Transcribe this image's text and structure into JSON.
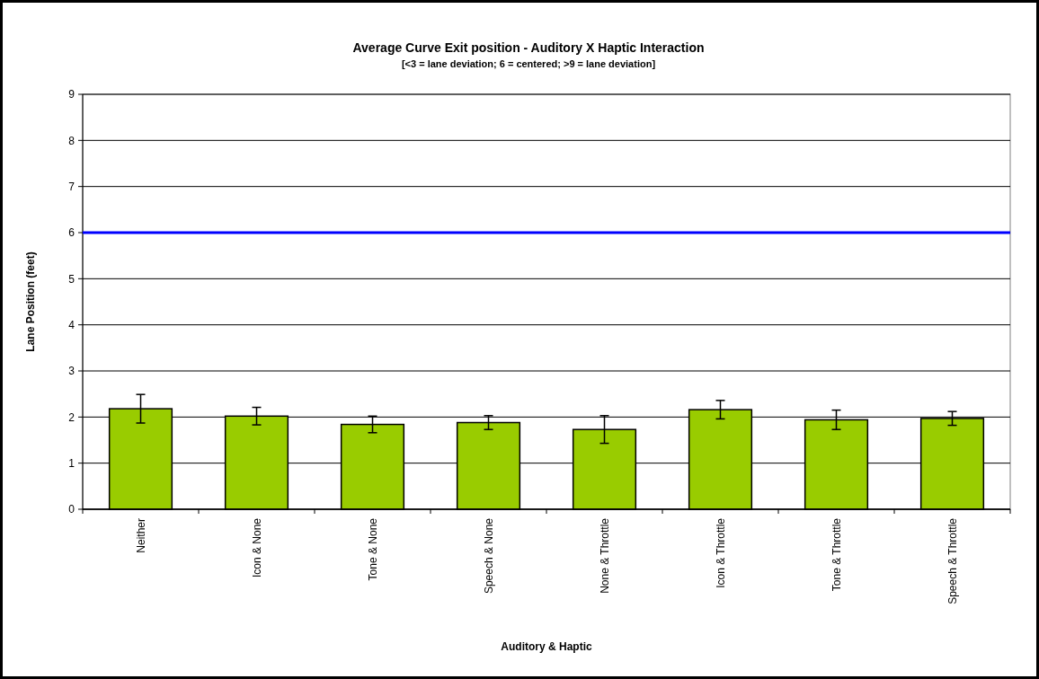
{
  "chart_data": {
    "type": "bar",
    "title": "Average Curve Exit position - Auditory X Haptic Interaction",
    "subtitle": "[<3 = lane deviation; 6 = centered; >9 = lane deviation]",
    "xlabel": "Auditory & Haptic",
    "ylabel": "Lane Position (feet)",
    "categories": [
      "Neither",
      "Icon & None",
      "Tone & None",
      "Speech & None",
      "None & Throttle",
      "Icon & Throttle",
      "Tone & Throttle",
      "Speech & Throttle"
    ],
    "values": [
      2.18,
      2.02,
      1.84,
      1.88,
      1.73,
      2.16,
      1.94,
      1.97
    ],
    "errors": [
      0.31,
      0.19,
      0.18,
      0.15,
      0.3,
      0.2,
      0.21,
      0.15
    ],
    "color": "#99cc00",
    "ylim": [
      0,
      9
    ],
    "yticks": [
      0,
      1,
      2,
      3,
      4,
      5,
      6,
      7,
      8,
      9
    ],
    "grid": "y",
    "ref_lines": [
      {
        "axis": "y",
        "value": 6,
        "color": "#0000ff",
        "line_style": "solid"
      }
    ]
  }
}
